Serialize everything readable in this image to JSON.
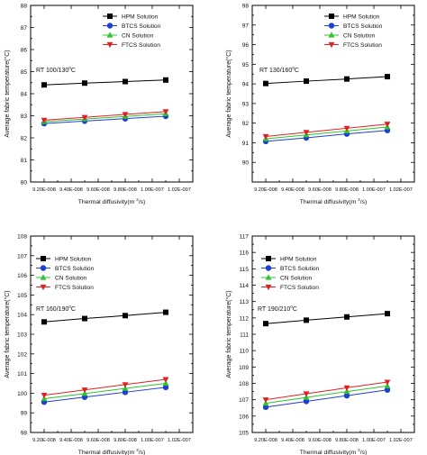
{
  "chart_data": [
    {
      "type": "line",
      "annotation": "RT 100/130",
      "annotation_sup": "0",
      "annotation_tail": "C",
      "xlabel": "Thermal diffusivity(m",
      "xlabel_sup": "2",
      "xlabel_tail": "/s)",
      "ylabel": "Average fabric temperature(",
      "ylabel_tail": "C)",
      "ylim": [
        80,
        88
      ],
      "yticks": [
        "80",
        "81",
        "82",
        "83",
        "84",
        "85",
        "86",
        "87",
        "88"
      ],
      "xlim": [
        9.1e-08,
        1.03e-07
      ],
      "xtick_values": [
        9.2e-08,
        9.4e-08,
        9.6e-08,
        9.8e-08,
        1e-07,
        1.02e-07
      ],
      "xtick_labels": [
        "9.20E-008",
        "9.40E-008",
        "9.60E-008",
        "9.80E-008",
        "1.00E-007",
        "1.02E-007"
      ],
      "x": [
        9.2e-08,
        9.5e-08,
        9.8e-08,
        1.01e-07
      ],
      "legend_position": "top-right",
      "series": [
        {
          "name": "HPM Solution",
          "values": [
            84.4,
            84.48,
            84.55,
            84.62
          ]
        },
        {
          "name": "BTCS Solution",
          "values": [
            82.65,
            82.76,
            82.87,
            82.98
          ]
        },
        {
          "name": "CN Solution",
          "values": [
            82.73,
            82.85,
            82.97,
            83.09
          ]
        },
        {
          "name": "FTCS Solution",
          "values": [
            82.8,
            82.93,
            83.06,
            83.19
          ]
        }
      ]
    },
    {
      "type": "line",
      "annotation": "RT 130/160",
      "annotation_sup": "0",
      "annotation_tail": "C",
      "xlabel": "Thermal diffusivity(m",
      "xlabel_sup": "2",
      "xlabel_tail": "/s)",
      "ylabel": "Average fabric temperature(",
      "ylabel_tail": "C)",
      "ylim": [
        89,
        98
      ],
      "yticks": [
        "90",
        "91",
        "92",
        "93",
        "94",
        "95",
        "96",
        "97",
        "98"
      ],
      "xlim": [
        9.1e-08,
        1.03e-07
      ],
      "xtick_values": [
        9.2e-08,
        9.4e-08,
        9.6e-08,
        9.8e-08,
        1e-07,
        1.02e-07
      ],
      "xtick_labels": [
        "9.20E-008",
        "9.40E-008",
        "9.60E-008",
        "9.80E-008",
        "1.00E-007",
        "1.02E-007"
      ],
      "x": [
        9.2e-08,
        9.5e-08,
        9.8e-08,
        1.01e-07
      ],
      "legend_position": "top-right",
      "series": [
        {
          "name": "HPM Solution",
          "values": [
            94.02,
            94.14,
            94.25,
            94.37
          ]
        },
        {
          "name": "BTCS Solution",
          "values": [
            91.07,
            91.25,
            91.45,
            91.63
          ]
        },
        {
          "name": "CN Solution",
          "values": [
            91.2,
            91.4,
            91.6,
            91.8
          ]
        },
        {
          "name": "FTCS Solution",
          "values": [
            91.32,
            91.53,
            91.74,
            91.95
          ]
        }
      ]
    },
    {
      "type": "line",
      "annotation": "RT 160/190",
      "annotation_sup": "0",
      "annotation_tail": "C",
      "xlabel": "Thermal diffusivity(m",
      "xlabel_sup": "2",
      "xlabel_tail": "/s)",
      "ylabel": "Average fabric temperature(",
      "ylabel_tail": "C)",
      "ylim": [
        98,
        108
      ],
      "yticks": [
        "98",
        "99",
        "100",
        "101",
        "102",
        "103",
        "104",
        "105",
        "106",
        "107",
        "108"
      ],
      "xlim": [
        9.1e-08,
        1.03e-07
      ],
      "xtick_values": [
        9.2e-08,
        9.4e-08,
        9.6e-08,
        9.8e-08,
        1e-07,
        1.02e-07
      ],
      "xtick_labels": [
        "9.20E-008",
        "9.40E-008",
        "9.60E-008",
        "9.80E-008",
        "1.00E-007",
        "1.02E-007"
      ],
      "x": [
        9.2e-08,
        9.5e-08,
        9.8e-08,
        1.01e-07
      ],
      "legend_position": "top-left",
      "series": [
        {
          "name": "HPM Solution",
          "values": [
            103.63,
            103.8,
            103.95,
            104.12
          ]
        },
        {
          "name": "BTCS Solution",
          "values": [
            99.55,
            99.8,
            100.05,
            100.3
          ]
        },
        {
          "name": "CN Solution",
          "values": [
            99.72,
            99.98,
            100.24,
            100.5
          ]
        },
        {
          "name": "FTCS Solution",
          "values": [
            99.9,
            100.17,
            100.44,
            100.7
          ]
        }
      ]
    },
    {
      "type": "line",
      "annotation": "RT 190/210",
      "annotation_sup": "0",
      "annotation_tail": "C",
      "xlabel": "Thermal diffusivity(m",
      "xlabel_sup": "2",
      "xlabel_tail": "/s)",
      "ylabel": "Average fabric temperature(",
      "ylabel_tail": "C)",
      "ylim": [
        105,
        117
      ],
      "yticks": [
        "105",
        "106",
        "107",
        "108",
        "109",
        "110",
        "111",
        "112",
        "113",
        "114",
        "115",
        "116",
        "117"
      ],
      "xlim": [
        9.1e-08,
        1.03e-07
      ],
      "xtick_values": [
        9.2e-08,
        9.4e-08,
        9.6e-08,
        9.8e-08,
        1e-07,
        1.02e-07
      ],
      "xtick_labels": [
        "9.20E-008",
        "9.40E-008",
        "9.60E-008",
        "9.80E-008",
        "1.00E-007",
        "1.02E-007"
      ],
      "x": [
        9.2e-08,
        9.5e-08,
        9.8e-08,
        1.01e-07
      ],
      "legend_position": "top-right",
      "series": [
        {
          "name": "HPM Solution",
          "values": [
            111.65,
            111.86,
            112.06,
            112.26
          ]
        },
        {
          "name": "BTCS Solution",
          "values": [
            106.55,
            106.9,
            107.25,
            107.6
          ]
        },
        {
          "name": "CN Solution",
          "values": [
            106.78,
            107.14,
            107.5,
            107.84
          ]
        },
        {
          "name": "FTCS Solution",
          "values": [
            107.0,
            107.37,
            107.73,
            108.08
          ]
        }
      ]
    }
  ],
  "styles": {
    "series_colors": [
      "#000000",
      "#1e3fd6",
      "#2ec42e",
      "#e02020"
    ],
    "series_markers": [
      "square",
      "circle",
      "triangle-up",
      "triangle-down"
    ],
    "degree_symbol": "°"
  }
}
